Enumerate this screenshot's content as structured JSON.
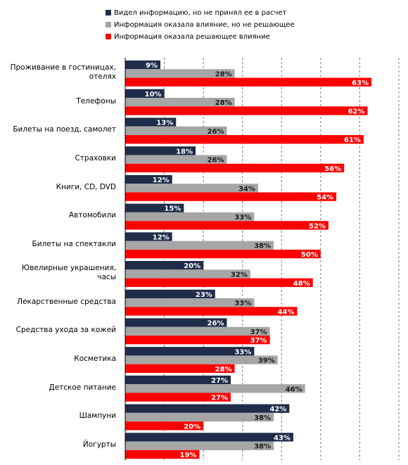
{
  "chart_data": {
    "type": "hbar",
    "categories": [
      "Проживание в гостиницах,\nотелях",
      "Телефоны",
      "Билеты на поезд, самолет",
      "Страховки",
      "Книги, CD, DVD",
      "Автомобили",
      "Билеты на спектакли",
      "Ювелирные украшения,\nчасы",
      "Лекарственные средства",
      "Средства ухода за кожей",
      "Косметика",
      "Детское питание",
      "Шампуни",
      "Йогурты"
    ],
    "series": [
      {
        "name": "Видел информацию,  но не принял ее в расчет",
        "color": "#1f2d4a",
        "label_color": "#ffffff",
        "values": [
          9,
          10,
          13,
          18,
          12,
          15,
          12,
          20,
          23,
          26,
          33,
          27,
          42,
          43
        ],
        "value_labels": [
          "9%",
          "10%",
          "13%",
          "18%",
          "12%",
          "15%",
          "12%",
          "20%",
          "23%",
          "26%",
          "33%",
          "27%",
          "42%",
          "43%"
        ]
      },
      {
        "name": "Информация оказала влияние, но не решающее",
        "color": "#a6a6a6",
        "label_color": "#1a1a1a",
        "values": [
          28,
          28,
          26,
          26,
          34,
          33,
          38,
          32,
          33,
          37,
          39,
          46,
          38,
          38
        ],
        "value_labels": [
          "28%",
          "28%",
          "26%",
          "26%",
          "34%",
          "33%",
          "38%",
          "32%",
          "33%",
          "37%",
          "39%",
          "46%",
          "38%",
          "38%"
        ]
      },
      {
        "name": "Информация оказала решающее влияние",
        "color": "#ff0000",
        "label_color": "#ffffff",
        "values": [
          63,
          62,
          61,
          56,
          54,
          52,
          50,
          48,
          44,
          37,
          28,
          27,
          20,
          19
        ],
        "value_labels": [
          "63%",
          "62%",
          "61%",
          "56%",
          "54%",
          "52%",
          "50%",
          "48%",
          "44%",
          "37%",
          "28%",
          "27%",
          "20%",
          "19%"
        ]
      }
    ],
    "xlim": [
      0,
      70
    ],
    "xticks": [
      0,
      10,
      20,
      30,
      40,
      50,
      60,
      70
    ],
    "grid": true,
    "show_tick_labels": false
  }
}
